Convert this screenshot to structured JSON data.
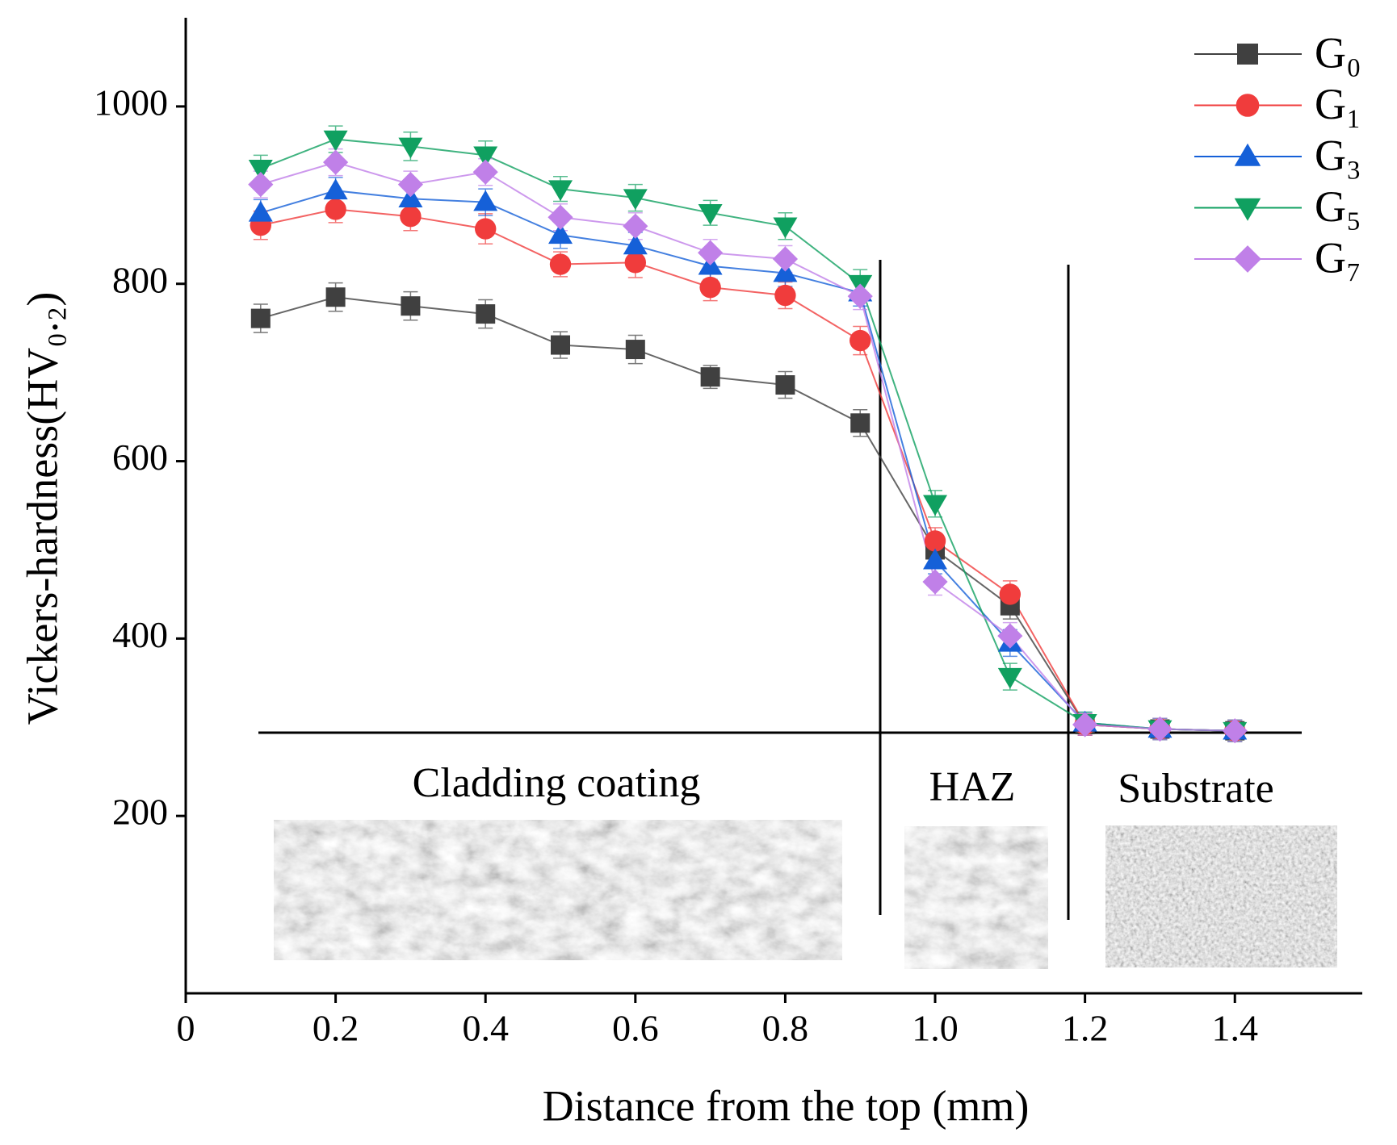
{
  "chart_data": {
    "type": "line",
    "x_label": "Distance from the top (mm)",
    "y_label": "Vickers-hardness(HV₀.₂)",
    "x": [
      0.1,
      0.2,
      0.3,
      0.4,
      0.5,
      0.6,
      0.7,
      0.8,
      0.9,
      1.0,
      1.1,
      1.2,
      1.3,
      1.4
    ],
    "xlim": [
      0,
      1.57
    ],
    "xticks": [
      0,
      0.2,
      0.4,
      0.6,
      0.8,
      {
        "value": 1.0,
        "label": "1.0"
      },
      1.2,
      1.4
    ],
    "ylim": [
      0,
      1100
    ],
    "yticks": [
      200,
      400,
      600,
      800,
      1000
    ],
    "legend": "upper right",
    "annotations": [
      "Cladding coating",
      "HAZ",
      "Substrate"
    ],
    "series": [
      {
        "name": "G₀",
        "color": "#404040",
        "marker": "square",
        "values": [
          761,
          785,
          775,
          766,
          731,
          726,
          695,
          686,
          643,
          500,
          437,
          303,
          298,
          296
        ],
        "errors": [
          16,
          16,
          16,
          16,
          15,
          16,
          13,
          15,
          15,
          15,
          15,
          12,
          12,
          12
        ]
      },
      {
        "name": "G₁",
        "color": "#f03c3c",
        "marker": "circle",
        "values": [
          866,
          884,
          876,
          862,
          822,
          824,
          796,
          787,
          736,
          510,
          450,
          303,
          298,
          296
        ],
        "errors": [
          16,
          15,
          16,
          17,
          14,
          17,
          15,
          15,
          16,
          15,
          15,
          12,
          12,
          12
        ]
      },
      {
        "name": "G₃",
        "color": "#1560d8",
        "marker": "triangle-up",
        "values": [
          880,
          905,
          896,
          892,
          855,
          843,
          820,
          812,
          790,
          488,
          395,
          305,
          298,
          296
        ],
        "errors": [
          15,
          15,
          15,
          15,
          15,
          15,
          15,
          15,
          15,
          15,
          15,
          12,
          12,
          12
        ]
      },
      {
        "name": "G₅",
        "color": "#10a060",
        "marker": "triangle-down",
        "values": [
          930,
          963,
          955,
          945,
          907,
          897,
          880,
          865,
          800,
          552,
          357,
          305,
          298,
          296
        ],
        "errors": [
          15,
          15,
          16,
          16,
          14,
          15,
          14,
          15,
          16,
          15,
          15,
          12,
          12,
          12
        ]
      },
      {
        "name": "G₇",
        "color": "#c080e8",
        "marker": "diamond",
        "values": [
          912,
          937,
          912,
          926,
          875,
          865,
          835,
          828,
          786,
          464,
          403,
          303,
          298,
          296
        ],
        "errors": [
          15,
          15,
          15,
          15,
          15,
          15,
          15,
          15,
          15,
          15,
          15,
          12,
          12,
          12
        ]
      }
    ]
  }
}
